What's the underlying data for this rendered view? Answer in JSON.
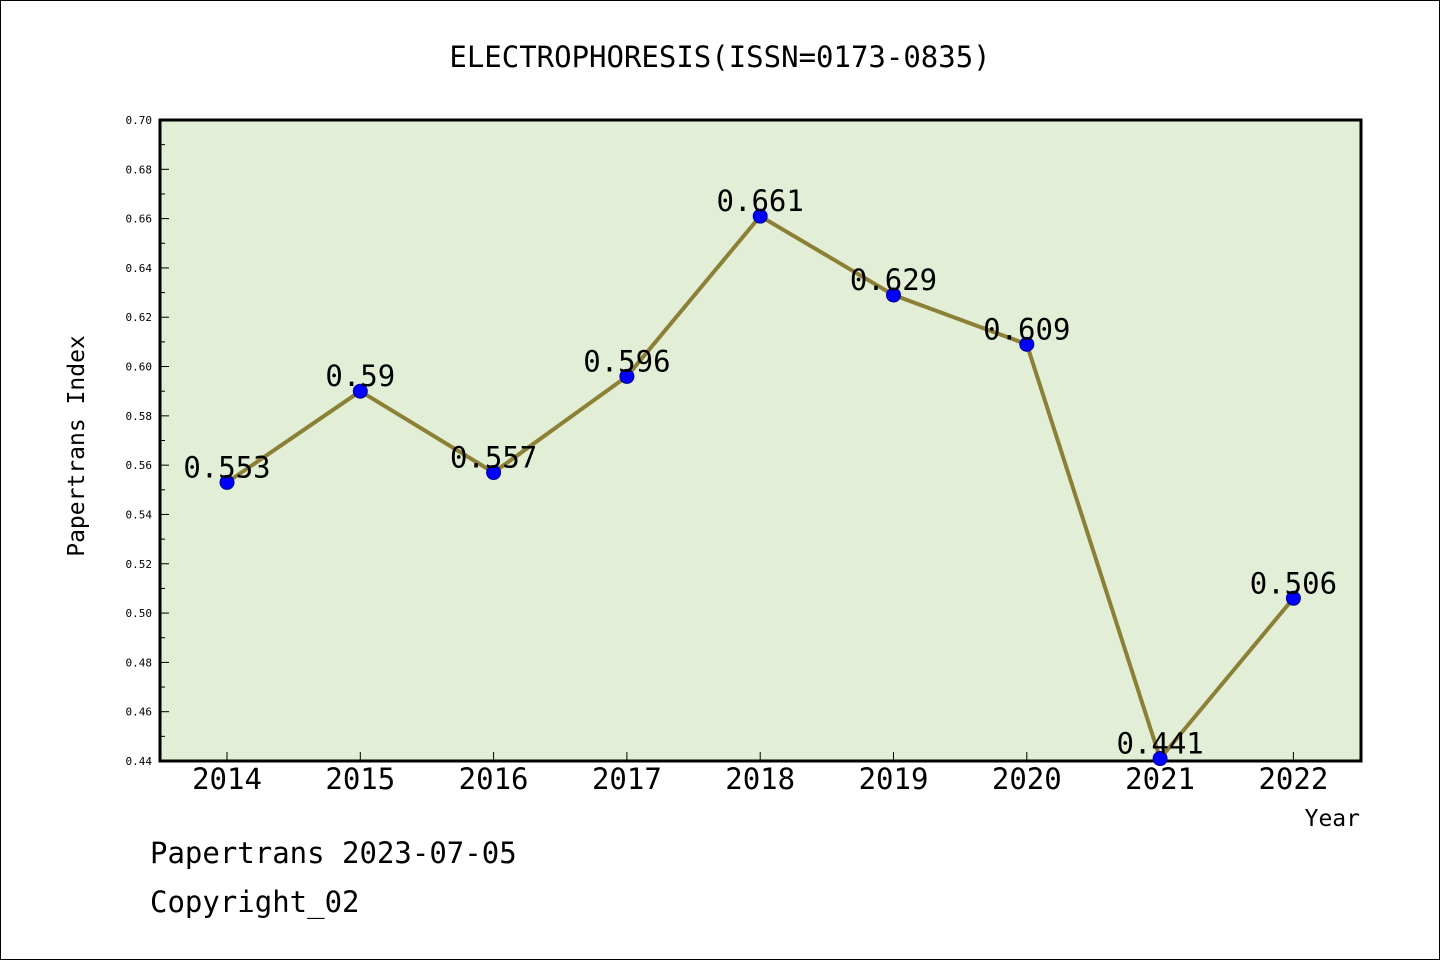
{
  "chart_data": {
    "type": "line",
    "title": "ELECTROPHORESIS(ISSN=0173-0835)",
    "xlabel": "Year",
    "ylabel": "Papertrans Index",
    "categories": [
      "2014",
      "2015",
      "2016",
      "2017",
      "2018",
      "2019",
      "2020",
      "2021",
      "2022"
    ],
    "series": [
      {
        "values": [
          0.553,
          0.59,
          0.557,
          0.596,
          0.661,
          0.629,
          0.609,
          0.441,
          0.506
        ]
      }
    ],
    "data_labels": [
      "0.553",
      "0.59",
      "0.557",
      "0.596",
      "0.661",
      "0.629",
      "0.609",
      "0.441",
      "0.506"
    ],
    "ylim": [
      0.44,
      0.7
    ],
    "yticks": [
      "0.44",
      "0.46",
      "0.48",
      "0.50",
      "0.52",
      "0.54",
      "0.56",
      "0.58",
      "0.60",
      "0.62",
      "0.64",
      "0.66",
      "0.68",
      "0.70"
    ],
    "grid": false,
    "legend": "none",
    "colors": {
      "plot_background": "#e2efd6",
      "line": "#8b8036",
      "marker_fill": "#0000ff",
      "marker_edge": "#00008b"
    }
  },
  "footer": {
    "line1": "Papertrans 2023-07-05",
    "line2": "Copyright_02"
  }
}
